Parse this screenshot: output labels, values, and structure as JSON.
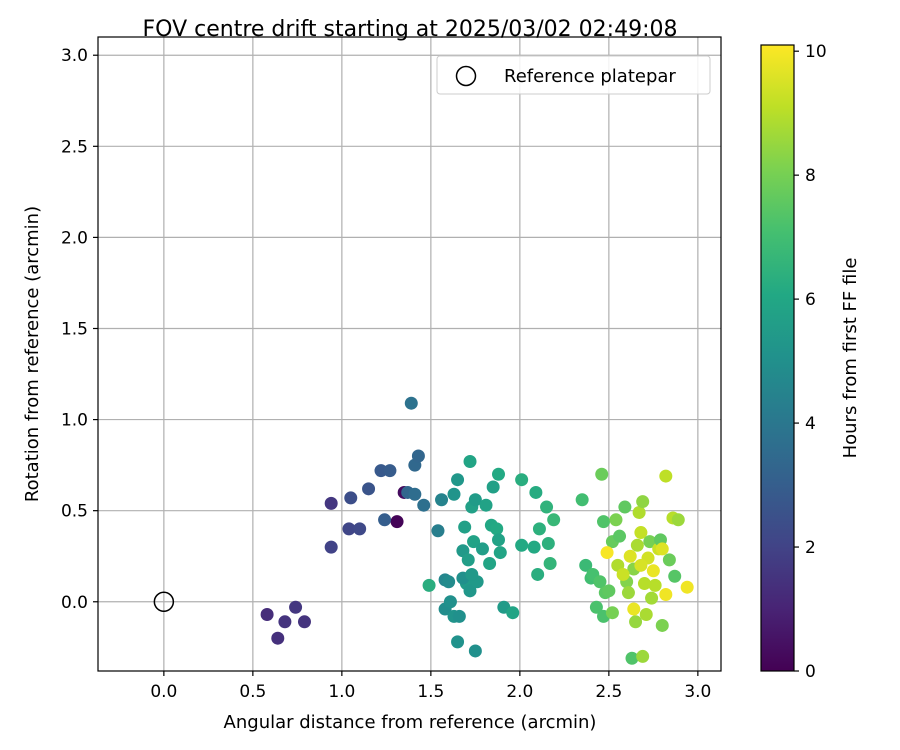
{
  "chart_data": {
    "type": "scatter",
    "title": "FOV centre drift starting at 2025/03/02 02:49:08",
    "xlabel": "Angular distance from reference (arcmin)",
    "ylabel": "Rotation from reference (arcmin)",
    "xlim": [
      -0.37,
      3.13
    ],
    "ylim": [
      -0.38,
      3.1
    ],
    "xticks": [
      0.0,
      0.5,
      1.0,
      1.5,
      2.0,
      2.5,
      3.0
    ],
    "xtick_labels": [
      "0.0",
      "0.5",
      "1.0",
      "1.5",
      "2.0",
      "2.5",
      "3.0"
    ],
    "yticks": [
      0.0,
      0.5,
      1.0,
      1.5,
      2.0,
      2.5,
      3.0
    ],
    "ytick_labels": [
      "0.0",
      "0.5",
      "1.0",
      "1.5",
      "2.0",
      "2.5",
      "3.0"
    ],
    "grid": true,
    "legend": {
      "placement": "top-right",
      "entries": [
        {
          "label": "Reference platepar",
          "marker": "open-circle",
          "x": 0.0,
          "y": 0.0
        }
      ]
    },
    "colorbar": {
      "label": "Hours from first FF file",
      "colormap": "viridis",
      "range": [
        0,
        10.1
      ],
      "ticks": [
        0,
        2,
        4,
        6,
        8,
        10
      ],
      "tick_labels": [
        "0",
        "2",
        "4",
        "6",
        "8",
        "10"
      ]
    },
    "color_var": "hours",
    "points": [
      [
        1.31,
        0.44,
        0.1
      ],
      [
        1.35,
        0.6,
        0.3
      ],
      [
        0.58,
        -0.07,
        1.3
      ],
      [
        0.64,
        -0.2,
        1.4
      ],
      [
        0.68,
        -0.11,
        1.5
      ],
      [
        0.74,
        -0.03,
        1.6
      ],
      [
        0.79,
        -0.11,
        1.5
      ],
      [
        0.94,
        0.54,
        1.6
      ],
      [
        0.94,
        0.3,
        2.0
      ],
      [
        1.04,
        0.4,
        2.1
      ],
      [
        1.1,
        0.4,
        2.2
      ],
      [
        1.05,
        0.57,
        2.4
      ],
      [
        1.15,
        0.62,
        2.6
      ],
      [
        1.22,
        0.72,
        2.8
      ],
      [
        1.27,
        0.72,
        2.9
      ],
      [
        1.24,
        0.45,
        3.0
      ],
      [
        1.37,
        0.6,
        3.3
      ],
      [
        1.41,
        0.59,
        3.6
      ],
      [
        1.41,
        0.75,
        3.4
      ],
      [
        1.43,
        0.8,
        3.3
      ],
      [
        1.46,
        0.53,
        3.7
      ],
      [
        1.39,
        1.09,
        3.8
      ],
      [
        1.54,
        0.39,
        4.3
      ],
      [
        1.56,
        0.56,
        4.5
      ],
      [
        1.58,
        0.12,
        4.6
      ],
      [
        1.6,
        0.11,
        4.8
      ],
      [
        1.58,
        -0.04,
        4.9
      ],
      [
        1.61,
        0.0,
        5.0
      ],
      [
        1.63,
        -0.08,
        5.2
      ],
      [
        1.66,
        -0.08,
        5.0
      ],
      [
        1.63,
        0.59,
        5.2
      ],
      [
        1.65,
        0.67,
        5.3
      ],
      [
        1.68,
        0.28,
        5.4
      ],
      [
        1.69,
        0.41,
        5.7
      ],
      [
        1.7,
        0.1,
        5.5
      ],
      [
        1.71,
        0.23,
        5.6
      ],
      [
        1.72,
        0.06,
        5.3
      ],
      [
        1.73,
        0.52,
        5.7
      ],
      [
        1.74,
        0.33,
        5.8
      ],
      [
        1.72,
        0.77,
        5.9
      ],
      [
        1.75,
        0.56,
        5.5
      ],
      [
        1.76,
        0.11,
        5.4
      ],
      [
        1.79,
        0.29,
        5.6
      ],
      [
        1.81,
        0.53,
        5.8
      ],
      [
        1.83,
        0.21,
        5.9
      ],
      [
        1.84,
        0.42,
        6.0
      ],
      [
        1.85,
        0.63,
        5.7
      ],
      [
        1.87,
        0.4,
        6.1
      ],
      [
        1.88,
        0.7,
        6.1
      ],
      [
        1.89,
        0.27,
        5.9
      ],
      [
        1.88,
        0.34,
        5.8
      ],
      [
        1.91,
        -0.03,
        5.5
      ],
      [
        1.96,
        -0.06,
        5.9
      ],
      [
        2.01,
        0.31,
        6.1
      ],
      [
        2.01,
        0.67,
        6.3
      ],
      [
        2.08,
        0.3,
        6.1
      ],
      [
        2.09,
        0.6,
        6.2
      ],
      [
        2.1,
        0.15,
        6.3
      ],
      [
        2.11,
        0.4,
        6.4
      ],
      [
        2.15,
        0.52,
        6.5
      ],
      [
        2.16,
        0.32,
        6.4
      ],
      [
        2.17,
        0.21,
        6.6
      ],
      [
        2.19,
        0.45,
        6.7
      ],
      [
        1.49,
        0.09,
        6.3
      ],
      [
        1.65,
        -0.22,
        5.1
      ],
      [
        1.75,
        -0.27,
        5.0
      ],
      [
        1.68,
        0.13,
        5.0
      ],
      [
        1.73,
        0.15,
        5.4
      ],
      [
        2.35,
        0.56,
        7.0
      ],
      [
        2.37,
        0.2,
        6.8
      ],
      [
        2.4,
        0.13,
        7.0
      ],
      [
        2.41,
        0.15,
        7.1
      ],
      [
        2.43,
        -0.03,
        7.2
      ],
      [
        2.45,
        0.11,
        7.3
      ],
      [
        2.47,
        0.44,
        7.3
      ],
      [
        2.46,
        0.7,
        7.8
      ],
      [
        2.47,
        -0.08,
        7.2
      ],
      [
        2.48,
        0.05,
        7.5
      ],
      [
        2.5,
        0.06,
        7.6
      ],
      [
        2.52,
        0.33,
        7.7
      ],
      [
        2.52,
        -0.06,
        8.0
      ],
      [
        2.54,
        0.45,
        8.1
      ],
      [
        2.56,
        0.36,
        7.5
      ],
      [
        2.59,
        0.52,
        7.6
      ],
      [
        2.6,
        0.11,
        8.2
      ],
      [
        2.61,
        0.05,
        8.6
      ],
      [
        2.63,
        -0.31,
        7.3
      ],
      [
        2.64,
        0.18,
        8.3
      ],
      [
        2.65,
        -0.11,
        8.5
      ],
      [
        2.66,
        0.31,
        8.8
      ],
      [
        2.67,
        0.49,
        8.9
      ],
      [
        2.68,
        0.38,
        9.2
      ],
      [
        2.69,
        0.55,
        8.4
      ],
      [
        2.69,
        -0.3,
        8.6
      ],
      [
        2.7,
        0.1,
        9.0
      ],
      [
        2.71,
        -0.07,
        8.8
      ],
      [
        2.72,
        0.24,
        9.4
      ],
      [
        2.73,
        0.33,
        8.0
      ],
      [
        2.74,
        0.02,
        8.7
      ],
      [
        2.75,
        0.17,
        9.8
      ],
      [
        2.76,
        0.09,
        9.0
      ],
      [
        2.78,
        0.29,
        9.3
      ],
      [
        2.79,
        0.34,
        7.6
      ],
      [
        2.8,
        -0.13,
        8.1
      ],
      [
        2.8,
        0.29,
        9.6
      ],
      [
        2.82,
        0.69,
        9.1
      ],
      [
        2.82,
        0.04,
        9.9
      ],
      [
        2.84,
        0.23,
        7.8
      ],
      [
        2.86,
        0.46,
        9.0
      ],
      [
        2.87,
        0.14,
        7.4
      ],
      [
        2.89,
        0.45,
        8.6
      ],
      [
        2.94,
        0.08,
        9.9
      ],
      [
        2.49,
        0.27,
        10.0
      ],
      [
        2.64,
        -0.04,
        9.8
      ],
      [
        2.55,
        0.2,
        8.9
      ],
      [
        2.58,
        0.15,
        9.3
      ],
      [
        2.62,
        0.25,
        9.6
      ],
      [
        2.68,
        0.2,
        9.5
      ]
    ]
  }
}
